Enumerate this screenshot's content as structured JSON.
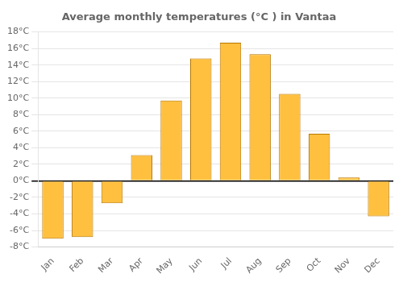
{
  "chart_data": {
    "type": "bar",
    "title": "Average monthly temperatures (°C ) in Vantaa",
    "categories": [
      "Jan",
      "Feb",
      "Mar",
      "Apr",
      "May",
      "Jun",
      "Jul",
      "Aug",
      "Sep",
      "Oct",
      "Nov",
      "Dec"
    ],
    "values": [
      -7.0,
      -6.8,
      -2.7,
      3.1,
      9.7,
      14.8,
      16.7,
      15.3,
      10.5,
      5.7,
      0.4,
      -4.3
    ],
    "color": "#FFC040",
    "ylim": [
      -8,
      18
    ],
    "yticks": [
      {
        "value": -8,
        "label": "-8°C"
      },
      {
        "value": -6,
        "label": "-6°C"
      },
      {
        "value": -4,
        "label": "-4°C"
      },
      {
        "value": -2,
        "label": "-2°C"
      },
      {
        "value": 0,
        "label": "0°C"
      },
      {
        "value": 2,
        "label": "2°C"
      },
      {
        "value": 4,
        "label": "4°C"
      },
      {
        "value": 6,
        "label": "6°C"
      },
      {
        "value": 8,
        "label": "8°C"
      },
      {
        "value": 10,
        "label": "10°C"
      },
      {
        "value": 12,
        "label": "12°C"
      },
      {
        "value": 14,
        "label": "14°C"
      },
      {
        "value": 16,
        "label": "16°C"
      },
      {
        "value": 18,
        "label": "18°C"
      }
    ],
    "grid": true
  }
}
